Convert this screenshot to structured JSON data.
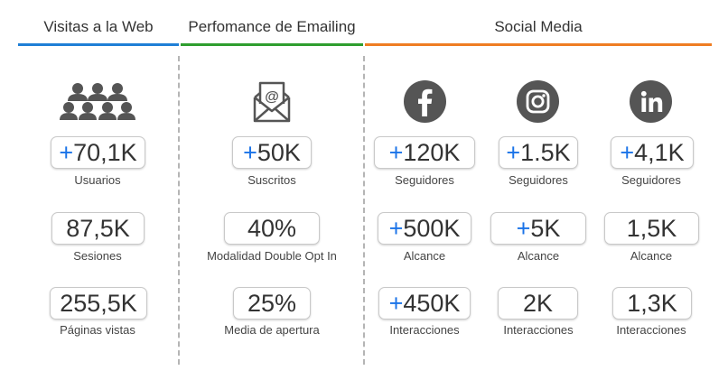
{
  "headers": {
    "web": "Visitas a la Web",
    "email": "Perfomance de Emailing",
    "social": "Social Media"
  },
  "colors": {
    "web": "#1f7fd6",
    "email": "#2f9e2f",
    "social": "#ef7d22",
    "icon": "#555555",
    "plus": "#1a73e8"
  },
  "icons": {
    "web": "people-group-icon",
    "email": "envelope-at-icon",
    "facebook": "facebook-icon",
    "instagram": "instagram-icon",
    "linkedin": "linkedin-icon"
  },
  "web": [
    {
      "plus": "+",
      "value": "70,1K",
      "label": "Usuarios"
    },
    {
      "plus": "",
      "value": "87,5K",
      "label": "Sesiones"
    },
    {
      "plus": "",
      "value": "255,5K",
      "label": "Páginas vistas"
    }
  ],
  "email": [
    {
      "plus": "+",
      "value": "50K",
      "label": "Suscritos"
    },
    {
      "plus": "",
      "value": "40%",
      "label": "Modalidad Double Opt In"
    },
    {
      "plus": "",
      "value": "25%",
      "label": "Media de apertura"
    }
  ],
  "facebook": [
    {
      "plus": "+",
      "value": "120K",
      "label": "Seguidores"
    },
    {
      "plus": "+",
      "value": "500K",
      "label": "Alcance"
    },
    {
      "plus": "+",
      "value": "450K",
      "label": "Interacciones"
    }
  ],
  "instagram": [
    {
      "plus": "+",
      "value": "1.5K",
      "label": "Seguidores"
    },
    {
      "plus": "+",
      "value": "5K",
      "label": "Alcance"
    },
    {
      "plus": "",
      "value": "2K",
      "label": "Interacciones"
    }
  ],
  "linkedin": [
    {
      "plus": "+",
      "value": "4,1K",
      "label": "Seguidores"
    },
    {
      "plus": "",
      "value": "1,5K",
      "label": "Alcance"
    },
    {
      "plus": "",
      "value": "1,3K",
      "label": "Interacciones"
    }
  ]
}
